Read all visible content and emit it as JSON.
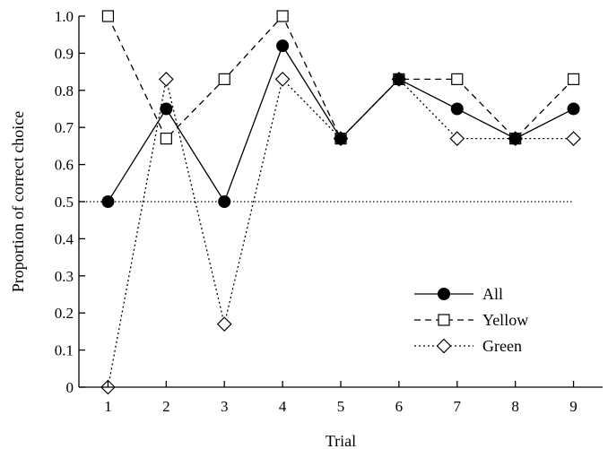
{
  "chart_data": {
    "type": "line",
    "xlabel": "Trial",
    "ylabel": "Proportion of correct choice",
    "x": [
      1,
      2,
      3,
      4,
      5,
      6,
      7,
      8,
      9
    ],
    "xlim": [
      0.5,
      9.5
    ],
    "ylim": [
      0,
      1.0
    ],
    "xticks": [
      "1",
      "2",
      "3",
      "4",
      "5",
      "6",
      "7",
      "8",
      "9"
    ],
    "yticks": [
      {
        "value": 0,
        "label": "0"
      },
      {
        "value": 0.1,
        "label": "0.1"
      },
      {
        "value": 0.2,
        "label": "0.2"
      },
      {
        "value": 0.3,
        "label": "0.3"
      },
      {
        "value": 0.4,
        "label": "0.4"
      },
      {
        "value": 0.5,
        "label": "0.5"
      },
      {
        "value": 0.6,
        "label": "0.6"
      },
      {
        "value": 0.7,
        "label": "0.7"
      },
      {
        "value": 0.8,
        "label": "0.8"
      },
      {
        "value": 0.9,
        "label": "0.9"
      },
      {
        "value": 1.0,
        "label": "1.0"
      }
    ],
    "reference_line": {
      "y": 0.5,
      "style": "dotted"
    },
    "grid": false,
    "legend_position": "bottom-right",
    "series": [
      {
        "name": "All",
        "values": [
          0.5,
          0.75,
          0.5,
          0.92,
          0.67,
          0.83,
          0.75,
          0.67,
          0.75
        ],
        "marker": "filled-circle",
        "line": "solid"
      },
      {
        "name": "Yellow",
        "values": [
          1.0,
          0.67,
          0.83,
          1.0,
          0.67,
          0.83,
          0.83,
          0.67,
          0.83
        ],
        "marker": "open-square",
        "line": "dashed"
      },
      {
        "name": "Green",
        "values": [
          0.0,
          0.83,
          0.17,
          0.83,
          0.67,
          0.83,
          0.67,
          0.67,
          0.67
        ],
        "marker": "open-diamond",
        "line": "dotted"
      }
    ]
  }
}
